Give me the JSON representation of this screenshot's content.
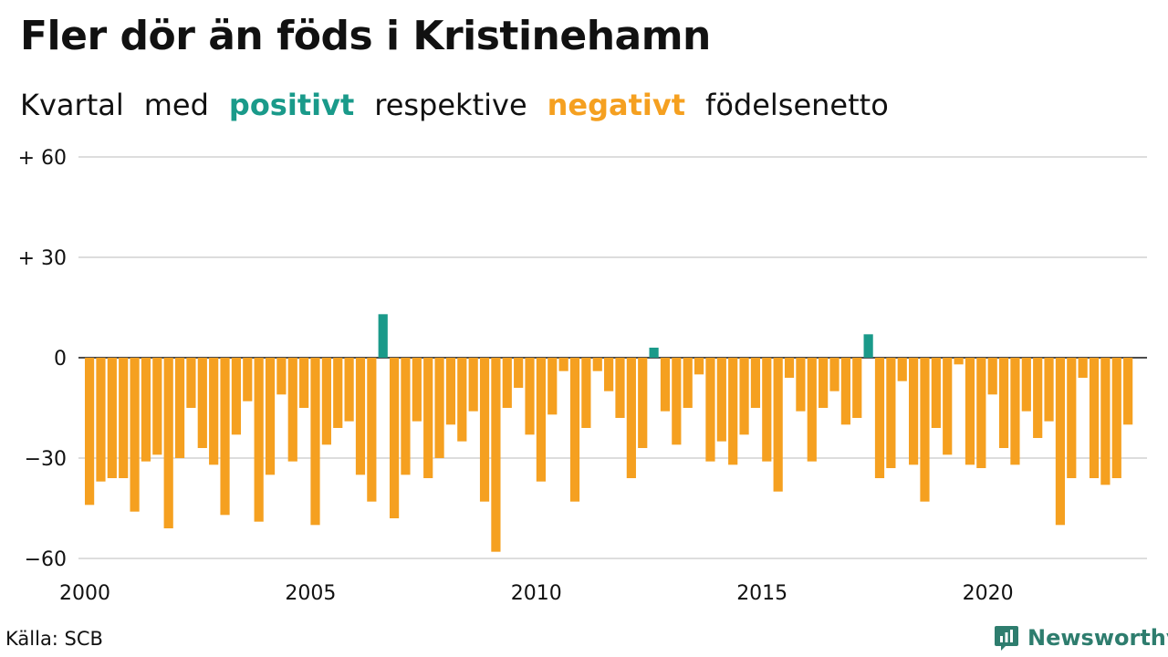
{
  "title": "Fler dör än föds i Kristinehamn",
  "subtitle": {
    "part1": "Kvartal",
    "part2": "med",
    "positive_word": "positivt",
    "part3": "respektive",
    "negative_word": "negativt",
    "part4": "födelsenetto"
  },
  "colors": {
    "positive": "#1a9a8a",
    "negative": "#f5a020",
    "grid": "#dddddd",
    "text": "#111111",
    "brand": "#2e7d6e"
  },
  "source": "Källa: SCB",
  "brand": {
    "name": "Newsworthy",
    "icon": "newsworthy-logo-icon"
  },
  "chart_data": {
    "type": "bar",
    "title": "Fler dör än föds i Kristinehamn",
    "xlabel": "",
    "ylabel": "",
    "ylim": [
      -60,
      60
    ],
    "yticks": [
      {
        "value": 60,
        "label": "+ 60"
      },
      {
        "value": 30,
        "label": "+ 30"
      },
      {
        "value": 0,
        "label": "0"
      },
      {
        "value": -30,
        "label": "−30"
      },
      {
        "value": -60,
        "label": "−60"
      }
    ],
    "xticks": [
      {
        "year": 2000,
        "label": "2000"
      },
      {
        "year": 2005,
        "label": "2005"
      },
      {
        "year": 2010,
        "label": "2010"
      },
      {
        "year": 2015,
        "label": "2015"
      },
      {
        "year": 2020,
        "label": "2020"
      }
    ],
    "x_start_year": 2000,
    "periods_per_year": 4,
    "grid": true,
    "legend": "none",
    "values": [
      -44,
      -37,
      -36,
      -36,
      -46,
      -31,
      -29,
      -51,
      -30,
      -15,
      -27,
      -32,
      -47,
      -23,
      -13,
      -49,
      -35,
      -11,
      -31,
      -15,
      -50,
      -26,
      -21,
      -19,
      -35,
      -43,
      13,
      -48,
      -35,
      -19,
      -36,
      -30,
      -20,
      -25,
      -16,
      -43,
      -58,
      -15,
      -9,
      -23,
      -37,
      -17,
      -4,
      -43,
      -21,
      -4,
      -10,
      -18,
      -36,
      -27,
      3,
      -16,
      -26,
      -15,
      -5,
      -31,
      -25,
      -32,
      -23,
      -15,
      -31,
      -40,
      -6,
      -16,
      -31,
      -15,
      -10,
      -20,
      -18,
      7,
      -36,
      -33,
      -7,
      -32,
      -43,
      -21,
      -29,
      -2,
      -32,
      -33,
      -11,
      -27,
      -32,
      -16,
      -24,
      -19,
      -50,
      -36,
      -6,
      -36,
      -38,
      -36,
      -20
    ]
  }
}
